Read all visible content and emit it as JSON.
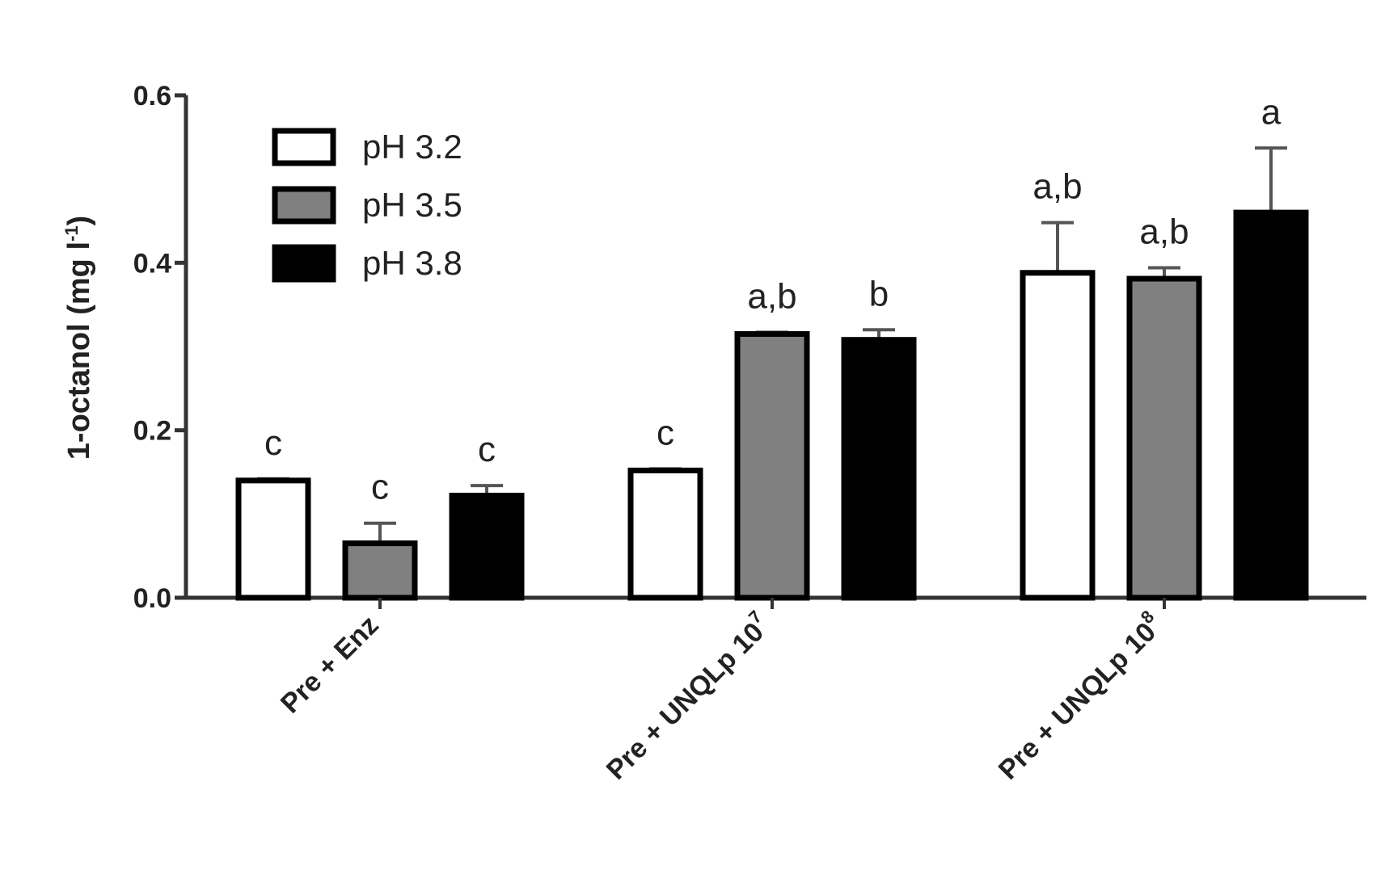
{
  "chart_data": {
    "type": "bar",
    "ylabel": "1-octanol (mg l",
    "ylabel_sup": "-1",
    "ylabel_close": ")",
    "ylim": [
      0,
      0.6
    ],
    "yticks": [
      "0.0",
      "0.2",
      "0.4",
      "0.6"
    ],
    "ytick_values": [
      0,
      0.2,
      0.4,
      0.6
    ],
    "grid": false,
    "legend_position": "top-left",
    "categories": [
      {
        "label": "Pre + Enz",
        "sup": ""
      },
      {
        "label": "Pre + UNQLp 10",
        "sup": "7"
      },
      {
        "label": "Pre + UNQLp 10",
        "sup": "8"
      }
    ],
    "series": [
      {
        "name": "pH 3.2",
        "color": "#ffffff",
        "values": [
          0.14,
          0.152,
          0.388
        ],
        "errors": [
          0.002,
          0.002,
          0.06
        ],
        "labels": [
          "c",
          "c",
          "a,b"
        ]
      },
      {
        "name": "pH 3.5",
        "color": "#808080",
        "values": [
          0.065,
          0.315,
          0.381
        ],
        "errors": [
          0.024,
          0.002,
          0.013
        ],
        "labels": [
          "c",
          "a,b",
          "a,b"
        ]
      },
      {
        "name": "pH 3.8",
        "color": "#000000",
        "values": [
          0.122,
          0.308,
          0.46
        ],
        "errors": [
          0.012,
          0.012,
          0.077
        ],
        "labels": [
          "c",
          "b",
          "a"
        ]
      }
    ]
  }
}
